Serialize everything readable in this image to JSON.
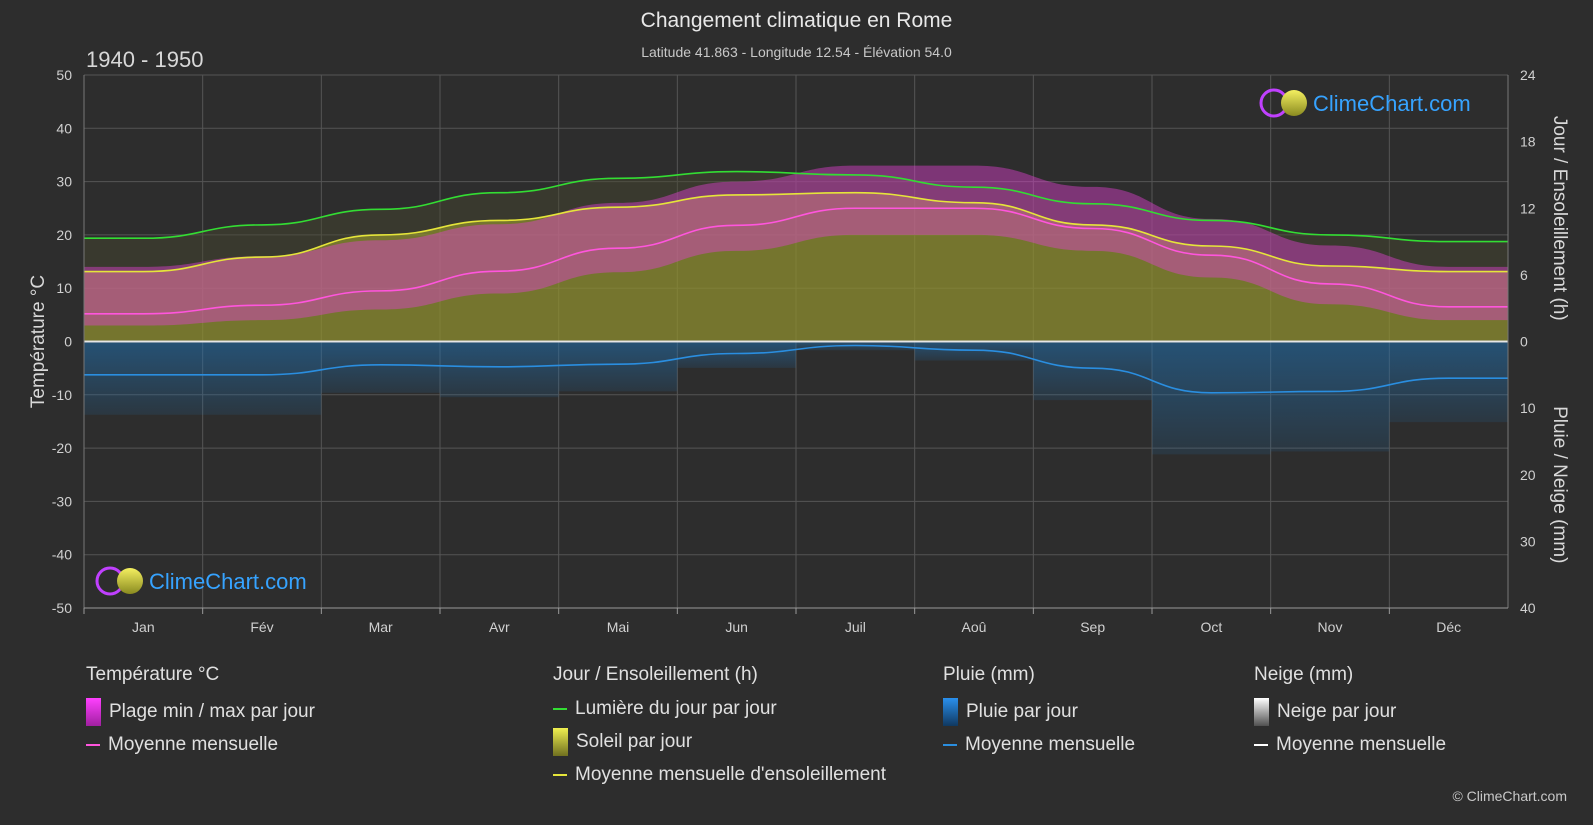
{
  "header": {
    "title": "Changement climatique en Rome",
    "subtitle": "Latitude 41.863 - Longitude 12.54 - Élévation 54.0",
    "period": "1940 - 1950"
  },
  "brand": {
    "name": "ClimeChart.com",
    "copyright": "© ClimeChart.com"
  },
  "colors": {
    "background": "#2d2d2d",
    "daylight": "#33dd33",
    "sunshine_mean": "#e5e53a",
    "temp_mean": "#ff55dd",
    "rain_mean": "#2a8ee0",
    "snow_mean": "#ffffff",
    "temp_range": "#e040d0",
    "sunshine_fill": "#a8a830",
    "rain_fill": "#2070b0"
  },
  "chart_data": {
    "type": "line",
    "categories": [
      "Jan",
      "Fév",
      "Mar",
      "Avr",
      "Mai",
      "Jun",
      "Juil",
      "Aoû",
      "Sep",
      "Oct",
      "Nov",
      "Déc"
    ],
    "axes": {
      "left": {
        "label": "Température °C",
        "min": -50,
        "max": 50,
        "ticks": [
          50,
          40,
          30,
          20,
          10,
          0,
          -10,
          -20,
          -30,
          -40,
          -50
        ]
      },
      "right_top": {
        "label": "Jour / Ensoleillement (h)",
        "min": 0,
        "max": 24,
        "ticks": [
          24,
          18,
          12,
          6,
          0
        ]
      },
      "right_bottom": {
        "label": "Pluie / Neige (mm)",
        "min": 0,
        "max": 40,
        "ticks": [
          0,
          10,
          20,
          30,
          40
        ]
      }
    },
    "grid": true,
    "series": [
      {
        "name": "Lumière du jour par jour",
        "axis": "hours",
        "values": [
          9.3,
          10.5,
          11.9,
          13.4,
          14.7,
          15.3,
          15.0,
          13.9,
          12.4,
          10.9,
          9.6,
          9.0
        ]
      },
      {
        "name": "Moyenne mensuelle d'ensoleillement",
        "axis": "hours",
        "values": [
          6.3,
          7.6,
          9.6,
          10.9,
          12.1,
          13.2,
          13.4,
          12.5,
          10.5,
          8.6,
          6.8,
          6.3
        ]
      },
      {
        "name": "Moyenne mensuelle",
        "group": "Température °C",
        "axis": "temperature",
        "values": [
          5.2,
          6.8,
          9.5,
          13.2,
          17.5,
          21.8,
          25.0,
          25.0,
          21.2,
          16.2,
          10.8,
          6.5
        ]
      },
      {
        "name": "Moyenne mensuelle",
        "group": "Pluie (mm)",
        "axis": "precip",
        "values": [
          5.0,
          5.0,
          3.5,
          3.8,
          3.4,
          1.8,
          0.6,
          1.3,
          4.0,
          7.7,
          7.5,
          5.5
        ]
      },
      {
        "name": "Moyenne mensuelle",
        "group": "Neige (mm)",
        "axis": "precip",
        "values": [
          0,
          0,
          0,
          0,
          0,
          0,
          0,
          0,
          0,
          0,
          0,
          0
        ]
      }
    ],
    "temperature_daily_range": {
      "min": [
        3,
        4,
        6,
        9,
        13,
        17,
        20,
        20,
        17,
        12,
        7,
        4
      ],
      "max": [
        14,
        16,
        19,
        22,
        26,
        30,
        33,
        33,
        29,
        23,
        18,
        14
      ]
    }
  },
  "legend": {
    "groups": [
      {
        "title": "Température °C",
        "items": [
          "Plage min / max par jour",
          "Moyenne mensuelle"
        ]
      },
      {
        "title": "Jour / Ensoleillement (h)",
        "items": [
          "Lumière du jour par jour",
          "Soleil par jour",
          "Moyenne mensuelle d'ensoleillement"
        ]
      },
      {
        "title": "Pluie (mm)",
        "items": [
          "Pluie par jour",
          "Moyenne mensuelle"
        ]
      },
      {
        "title": "Neige (mm)",
        "items": [
          "Neige par jour",
          "Moyenne mensuelle"
        ]
      }
    ]
  }
}
